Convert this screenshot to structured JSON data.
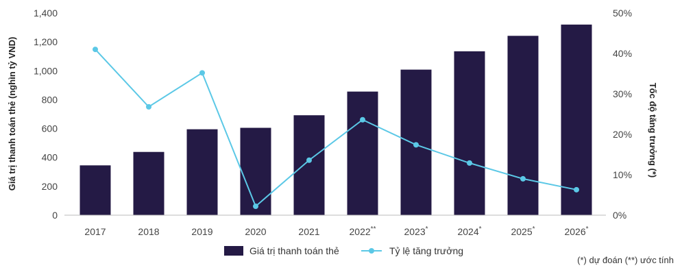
{
  "chart_data": {
    "type": "bar",
    "categories": [
      "2017",
      "2018",
      "2019",
      "2020",
      "2021",
      "2022",
      "2023",
      "2024",
      "2025",
      "2026"
    ],
    "category_marks": [
      "",
      "",
      "",
      "",
      "",
      "**",
      "*",
      "*",
      "*",
      "*"
    ],
    "series": [
      {
        "name": "Giá trị thanh toán thẻ",
        "type": "bar",
        "axis": "left",
        "values": [
          345,
          438,
          595,
          605,
          692,
          856,
          1008,
          1135,
          1242,
          1320
        ]
      },
      {
        "name": "Tỷ lệ tăng trưởng",
        "type": "line",
        "axis": "right",
        "values": [
          41,
          26.8,
          35.2,
          2.2,
          13.6,
          23.6,
          17.4,
          12.9,
          9,
          6.3
        ]
      }
    ],
    "ylabel": "Giá trị thanh toán thẻ (nghìn tỷ VND)",
    "y2label": "Tốc độ tăng trưởng (*)",
    "ylim": [
      0,
      1400
    ],
    "y2lim": [
      0,
      50
    ],
    "yticks": [
      "0",
      "200",
      "400",
      "600",
      "800",
      "1,000",
      "1,200",
      "1,400"
    ],
    "y2ticks": [
      "0%",
      "10%",
      "20%",
      "30%",
      "40%",
      "50%"
    ],
    "legend_position": "bottom-center",
    "grid": false,
    "colors": {
      "bar": "#241a45",
      "line": "#5bc8e6",
      "axis": "#bbbbbb",
      "text": "#444444"
    },
    "note": "(*) dự đoán (**) ước tính"
  }
}
